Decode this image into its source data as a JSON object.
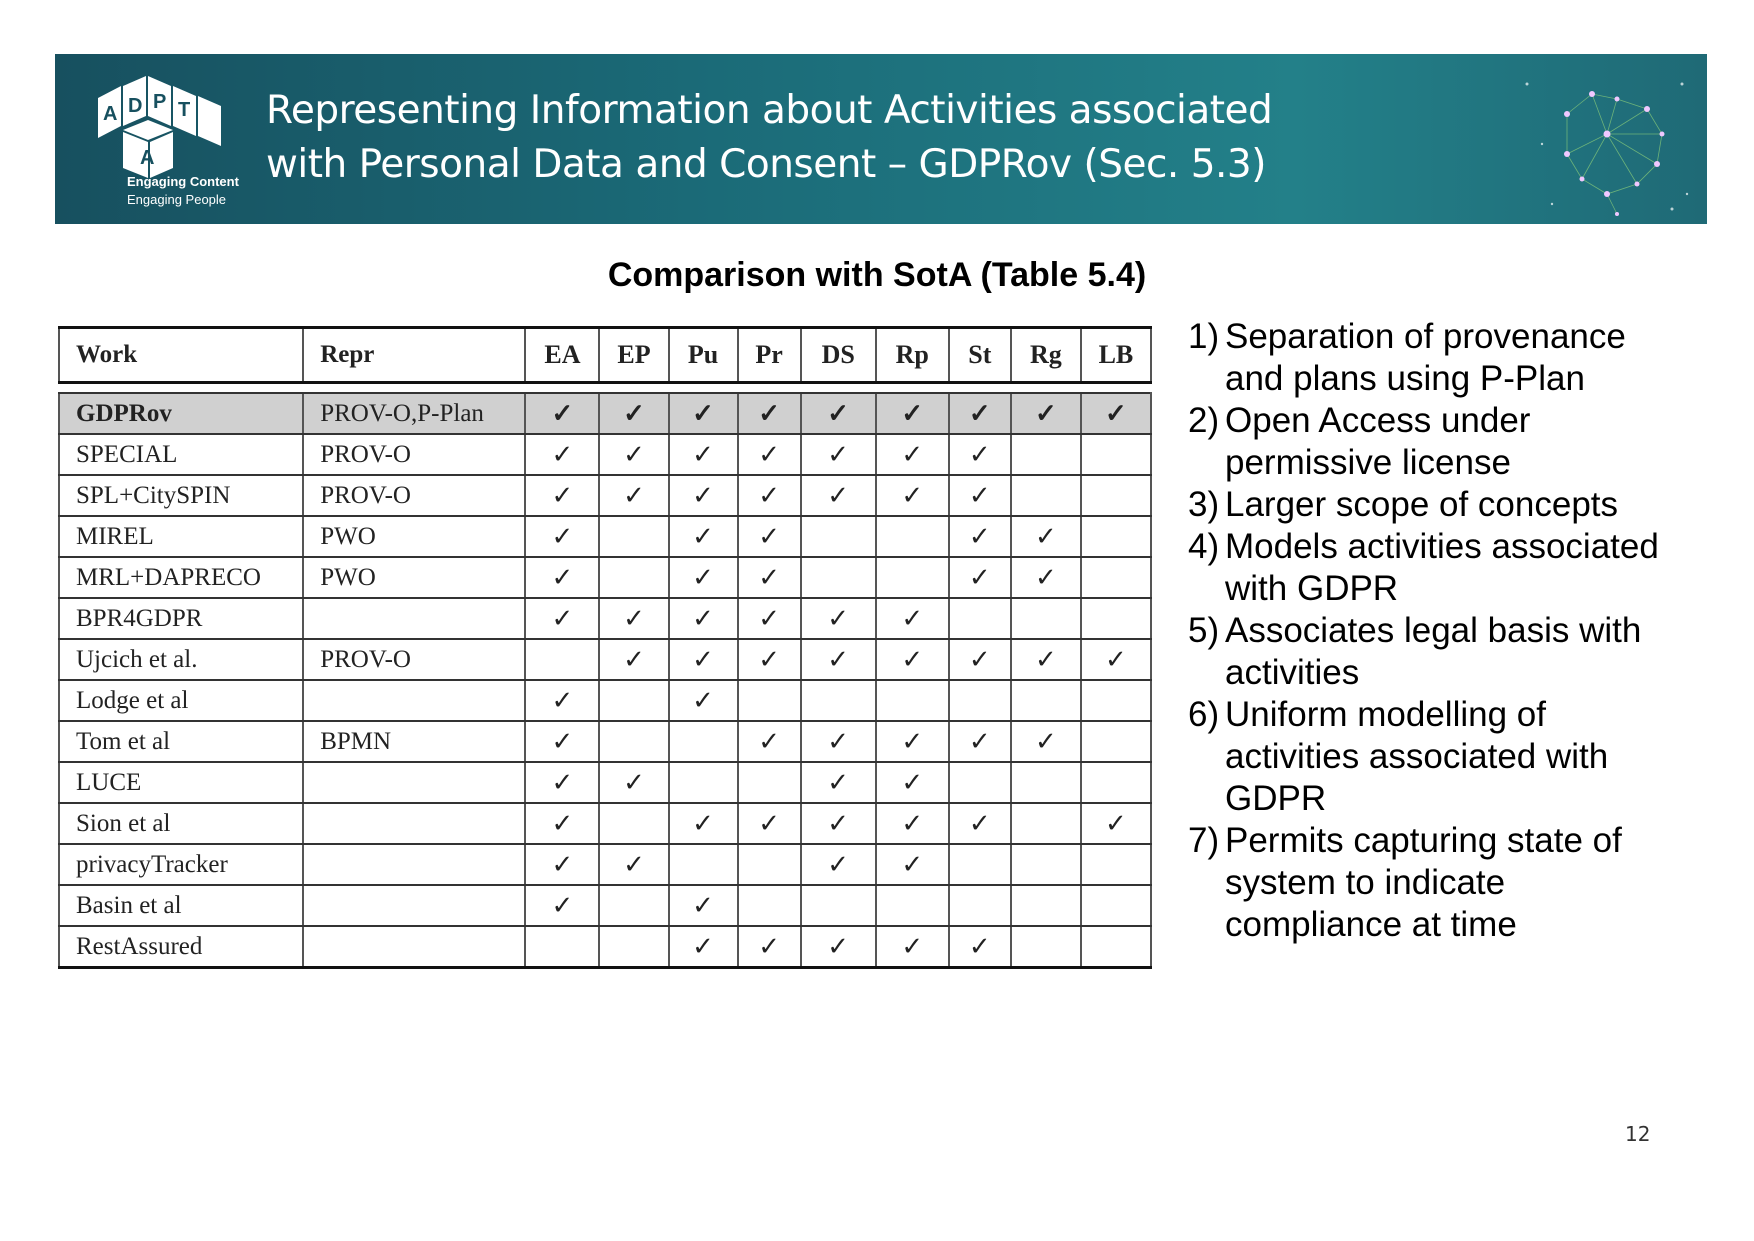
{
  "header": {
    "title_line1": "Representing Information about Activities associated",
    "title_line2": "with Personal Data and Consent – GDPRov (Sec. 5.3)",
    "logo": {
      "letters": [
        "A",
        "D",
        "P",
        "T",
        "A"
      ],
      "tagline1": "Engaging Content",
      "tagline2": "Engaging People"
    }
  },
  "table": {
    "caption": "Comparison with SotA (Table 5.4)",
    "columns": [
      "Work",
      "Repr",
      "EA",
      "EP",
      "Pu",
      "Pr",
      "DS",
      "Rp",
      "St",
      "Rg",
      "LB"
    ],
    "check_symbol": "✓",
    "rows": [
      {
        "work": "GDPRov",
        "repr": "PROV-O,P-Plan",
        "marks": [
          1,
          1,
          1,
          1,
          1,
          1,
          1,
          1,
          1
        ]
      },
      {
        "work": "SPECIAL",
        "repr": "PROV-O",
        "marks": [
          1,
          1,
          1,
          1,
          1,
          1,
          1,
          0,
          0
        ]
      },
      {
        "work": "SPL+CitySPIN",
        "repr": "PROV-O",
        "marks": [
          1,
          1,
          1,
          1,
          1,
          1,
          1,
          0,
          0
        ]
      },
      {
        "work": "MIREL",
        "repr": "PWO",
        "marks": [
          1,
          0,
          1,
          1,
          0,
          0,
          1,
          1,
          0
        ]
      },
      {
        "work": "MRL+DAPRECO",
        "repr": "PWO",
        "marks": [
          1,
          0,
          1,
          1,
          0,
          0,
          1,
          1,
          0
        ]
      },
      {
        "work": "BPR4GDPR",
        "repr": "",
        "marks": [
          1,
          1,
          1,
          1,
          1,
          1,
          0,
          0,
          0
        ]
      },
      {
        "work": "Ujcich et al.",
        "repr": "PROV-O",
        "marks": [
          0,
          1,
          1,
          1,
          1,
          1,
          1,
          1,
          1
        ]
      },
      {
        "work": "Lodge et al",
        "repr": "",
        "marks": [
          1,
          0,
          1,
          0,
          0,
          0,
          0,
          0,
          0
        ]
      },
      {
        "work": "Tom et al",
        "repr": "BPMN",
        "marks": [
          1,
          0,
          0,
          1,
          1,
          1,
          1,
          1,
          0
        ]
      },
      {
        "work": "LUCE",
        "repr": "",
        "marks": [
          1,
          1,
          0,
          0,
          1,
          1,
          0,
          0,
          0
        ]
      },
      {
        "work": "Sion et al",
        "repr": "",
        "marks": [
          1,
          0,
          1,
          1,
          1,
          1,
          1,
          0,
          1
        ]
      },
      {
        "work": "privacyTracker",
        "repr": "",
        "marks": [
          1,
          1,
          0,
          0,
          1,
          1,
          0,
          0,
          0
        ]
      },
      {
        "work": "Basin et al",
        "repr": "",
        "marks": [
          1,
          0,
          1,
          0,
          0,
          0,
          0,
          0,
          0
        ]
      },
      {
        "work": "RestAssured",
        "repr": "",
        "marks": [
          0,
          0,
          1,
          1,
          1,
          1,
          1,
          0,
          0
        ]
      }
    ]
  },
  "features": [
    {
      "num": "1)",
      "lines": [
        "Separation of provenance",
        "and plans using P-Plan"
      ]
    },
    {
      "num": "2)",
      "lines": [
        "Open Access under",
        "permissive license"
      ]
    },
    {
      "num": "3)",
      "lines": [
        "Larger scope of concepts"
      ]
    },
    {
      "num": "4)",
      "lines": [
        "Models activities associated",
        "with GDPR"
      ]
    },
    {
      "num": "5)",
      "lines": [
        "Associates legal basis with",
        "activities"
      ]
    },
    {
      "num": "6)",
      "lines": [
        "Uniform modelling of",
        "activities associated with",
        "GDPR"
      ]
    },
    {
      "num": "7)",
      "lines": [
        "Permits capturing state of",
        "system to indicate",
        "compliance at time"
      ]
    }
  ],
  "page_number": "12",
  "colors": {
    "banner_dark": "#17505f",
    "banner_light": "#238089",
    "highlight_row": "#d0d0d0"
  }
}
